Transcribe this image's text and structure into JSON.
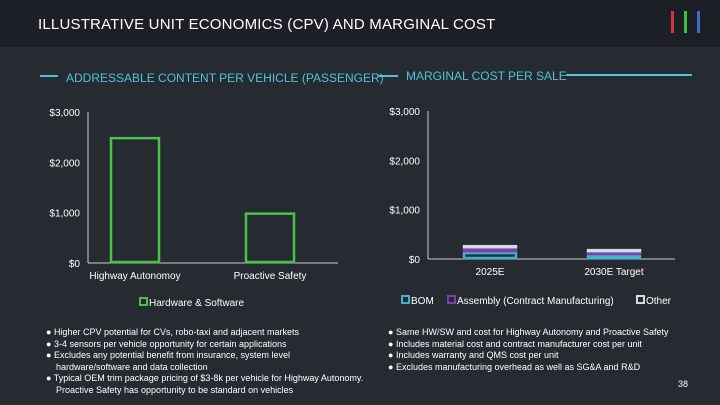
{
  "title": "ILLUSTRATIVE UNIT ECONOMICS (CPV) AND MARGINAL COST",
  "accent_bars": [
    "#d8343b",
    "#3fbf4a",
    "#3f6fbf"
  ],
  "left": {
    "heading": "ADDRESSABLE CONTENT PER VEHICLE (PASSENGER)",
    "bullets": [
      "Higher CPV potential for CVs, robo-taxi and adjacent markets",
      "3-4 sensors per vehicle opportunity for certain applications",
      "Excludes any potential benefit from insurance, system level hardware/software and data collection",
      "Typical OEM trim package pricing of $3-8k per vehicle for Highway Autonomy. Proactive Safety has opportunity to be standard on vehicles"
    ]
  },
  "right": {
    "heading": "MARGINAL COST PER SALE",
    "bullets": [
      "Same HW/SW and cost for Highway Autonomy and Proactive Safety",
      "Includes material cost and contract manufacturer cost per unit",
      "Includes warranty and QMS cost per unit",
      "Excludes manufacturing overhead as well as SG&A and R&D"
    ]
  },
  "page_number": "38",
  "chart_data": [
    {
      "type": "bar",
      "categories": [
        "Highway Autonomoy",
        "Proactive Safety"
      ],
      "series": [
        {
          "name": "Hardware & Software",
          "values": [
            2500,
            1000
          ],
          "color": "#4cc24a"
        }
      ],
      "yticks": [
        "$0",
        "$1,000",
        "$2,000",
        "$3,000"
      ],
      "ylim": [
        0,
        3000
      ]
    },
    {
      "type": "bar",
      "stacked": true,
      "categories": [
        "2025E",
        "2030E Target"
      ],
      "series": [
        {
          "name": "BOM",
          "values": [
            140,
            80
          ],
          "color": "#3fb3c9"
        },
        {
          "name": "Assembly (Contract Manufacturing)",
          "values": [
            80,
            70
          ],
          "color": "#7b3fb3"
        },
        {
          "name": "Other",
          "values": [
            60,
            50
          ],
          "color": "#d8d8e0"
        }
      ],
      "yticks": [
        "$0",
        "$1,000",
        "$2,000",
        "$3,000"
      ],
      "ylim": [
        0,
        3000
      ]
    }
  ]
}
